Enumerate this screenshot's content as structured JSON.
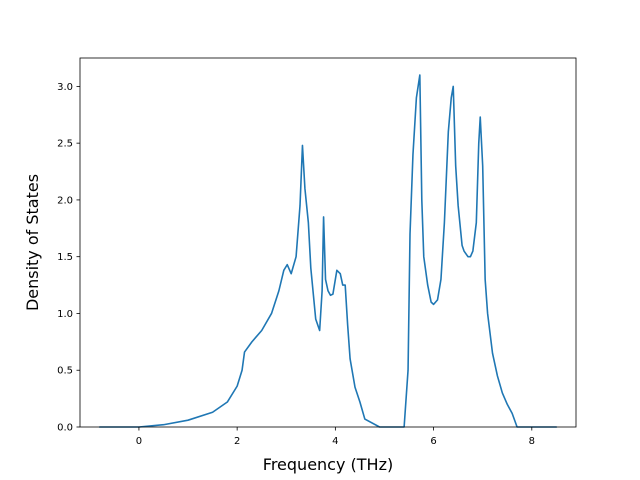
{
  "chart_data": {
    "type": "line",
    "xlabel": "Frequency (THz)",
    "ylabel": "Density of States",
    "xlim": [
      -1.2,
      8.9
    ],
    "ylim": [
      0,
      3.25
    ],
    "xticks": [
      0,
      2,
      4,
      6,
      8
    ],
    "yticks": [
      0.0,
      0.5,
      1.0,
      1.5,
      2.0,
      2.5,
      3.0
    ],
    "ytick_labels": [
      "0.0",
      "0.5",
      "1.0",
      "1.5",
      "2.0",
      "2.5",
      "3.0"
    ],
    "grid": false,
    "series": [
      {
        "color": "#1f77b4",
        "x": [
          -0.8,
          0.0,
          0.5,
          1.0,
          1.5,
          1.8,
          2.0,
          2.1,
          2.15,
          2.3,
          2.5,
          2.7,
          2.85,
          2.95,
          3.02,
          3.1,
          3.2,
          3.28,
          3.33,
          3.38,
          3.45,
          3.5,
          3.6,
          3.68,
          3.73,
          3.76,
          3.8,
          3.85,
          3.9,
          3.95,
          4.03,
          4.1,
          4.15,
          4.2,
          4.25,
          4.3,
          4.4,
          4.5,
          4.6,
          4.9,
          5.1,
          5.4,
          5.48,
          5.52,
          5.58,
          5.65,
          5.72,
          5.76,
          5.8,
          5.88,
          5.95,
          6.0,
          6.08,
          6.15,
          6.22,
          6.3,
          6.36,
          6.4,
          6.45,
          6.5,
          6.58,
          6.62,
          6.7,
          6.75,
          6.8,
          6.87,
          6.92,
          6.95,
          7.0,
          7.05,
          7.1,
          7.2,
          7.3,
          7.4,
          7.5,
          7.6,
          7.7,
          7.9,
          8.5
        ],
        "y": [
          0.0,
          0.0,
          0.02,
          0.06,
          0.13,
          0.22,
          0.36,
          0.5,
          0.66,
          0.75,
          0.85,
          1.0,
          1.2,
          1.38,
          1.43,
          1.35,
          1.5,
          1.95,
          2.48,
          2.1,
          1.8,
          1.4,
          0.95,
          0.85,
          1.2,
          1.85,
          1.3,
          1.2,
          1.16,
          1.17,
          1.38,
          1.35,
          1.25,
          1.25,
          0.9,
          0.6,
          0.35,
          0.22,
          0.07,
          0.0,
          0.0,
          0.0,
          0.5,
          1.7,
          2.4,
          2.9,
          3.1,
          2.0,
          1.5,
          1.25,
          1.1,
          1.08,
          1.12,
          1.3,
          1.8,
          2.6,
          2.9,
          3.0,
          2.3,
          1.95,
          1.6,
          1.55,
          1.5,
          1.5,
          1.55,
          1.8,
          2.5,
          2.73,
          2.3,
          1.3,
          1.0,
          0.65,
          0.45,
          0.3,
          0.2,
          0.12,
          0.0,
          0.0,
          0.0
        ]
      }
    ]
  }
}
